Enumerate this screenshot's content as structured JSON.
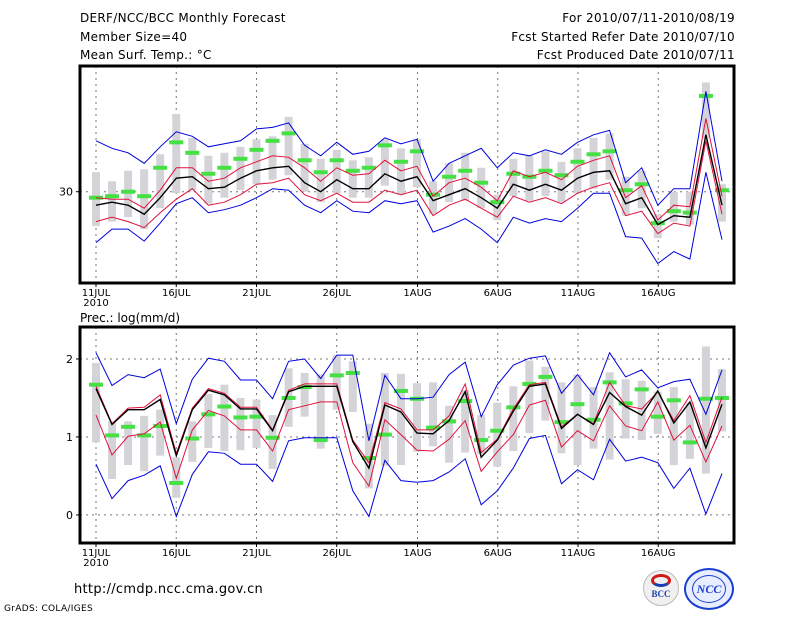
{
  "header": {
    "title": "DERF/NCC/BCC Monthly Forecast",
    "member_size": "Member Size=40",
    "variable": "Mean Surf. Temp.: °C",
    "period": "For 2010/07/11-2010/08/19",
    "started": "Fcst Started Refer Date 2010/07/10",
    "produced": "Fcst Produced Date 2010/07/11"
  },
  "footer": {
    "url": "http://cmdp.ncc.cma.gov.cn",
    "credit": "GrADS: COLA/IGES",
    "logo_bcc": "BCC",
    "logo_ncc": "NCC"
  },
  "colors": {
    "ensemble_mean": "#000000",
    "spread_inner": "#e0103c",
    "spread_outer": "#0000dd",
    "member_box": "#d4d4d8",
    "median": "#44e044"
  },
  "chart_data": [
    {
      "type": "line",
      "title": "Mean Surf. Temp.: °C",
      "xlabel": "",
      "ylabel": "",
      "x_tick_labels": [
        "11JUL",
        "16JUL",
        "21JUL",
        "26JUL",
        "1AUG",
        "6AUG",
        "11AUG",
        "16AUG"
      ],
      "x_tick_sublabel": "2010",
      "y_tick_labels": [
        "30"
      ],
      "y_ticks": [
        30
      ],
      "ylim": [
        23.9,
        38.4
      ],
      "grid": true,
      "dates": [
        "07/11",
        "07/12",
        "07/13",
        "07/14",
        "07/15",
        "07/16",
        "07/17",
        "07/18",
        "07/19",
        "07/20",
        "07/21",
        "07/22",
        "07/23",
        "07/24",
        "07/25",
        "07/26",
        "07/27",
        "07/28",
        "07/29",
        "07/30",
        "07/31",
        "08/01",
        "08/02",
        "08/03",
        "08/04",
        "08/05",
        "08/06",
        "08/07",
        "08/08",
        "08/09",
        "08/10",
        "08/11",
        "08/12",
        "08/13",
        "08/14",
        "08/15",
        "08/16",
        "08/17",
        "08/18",
        "08/19"
      ],
      "series": [
        {
          "name": "ensemble-mean",
          "values": [
            29.1,
            29.3,
            29.1,
            28.5,
            29.6,
            30.9,
            31.0,
            30.2,
            30.3,
            30.9,
            31.4,
            31.6,
            31.7,
            30.6,
            30.0,
            30.8,
            30.2,
            30.2,
            31.2,
            30.7,
            31.0,
            29.4,
            29.8,
            30.2,
            29.6,
            28.9,
            30.5,
            30.1,
            30.5,
            30.1,
            30.9,
            31.3,
            31.4,
            29.2,
            29.6,
            27.8,
            28.4,
            28.3,
            33.8,
            29.1
          ]
        },
        {
          "name": "spread-upper",
          "values": [
            33.4,
            32.9,
            32.6,
            31.9,
            33.0,
            34.0,
            33.7,
            33.0,
            33.2,
            33.4,
            34.2,
            34.3,
            34.6,
            33.1,
            32.4,
            33.3,
            32.5,
            32.7,
            33.6,
            33.2,
            33.5,
            30.7,
            31.9,
            32.4,
            32.9,
            31.6,
            32.6,
            32.4,
            32.8,
            32.5,
            33.3,
            33.8,
            34.1,
            30.6,
            31.6,
            29.1,
            30.2,
            30.2,
            36.7,
            30.7
          ]
        },
        {
          "name": "spread-inner-upper",
          "values": [
            29.6,
            29.5,
            29.5,
            28.9,
            30.1,
            31.6,
            31.6,
            30.7,
            30.9,
            31.6,
            32.0,
            32.4,
            32.3,
            31.6,
            30.7,
            31.6,
            31.1,
            31.2,
            32.1,
            31.4,
            31.7,
            29.7,
            30.6,
            30.9,
            30.3,
            29.4,
            31.4,
            31.0,
            31.3,
            30.8,
            31.7,
            32.1,
            32.4,
            29.6,
            30.4,
            28.1,
            29.1,
            29.0,
            34.9,
            29.7
          ]
        },
        {
          "name": "spread-inner-lower",
          "values": [
            28.0,
            28.3,
            28.0,
            27.6,
            28.6,
            29.5,
            30.2,
            29.1,
            29.3,
            29.8,
            30.5,
            30.6,
            30.9,
            29.8,
            29.4,
            29.9,
            29.3,
            29.3,
            30.1,
            29.8,
            30.1,
            28.4,
            29.1,
            29.5,
            28.9,
            28.3,
            29.7,
            29.3,
            29.6,
            29.2,
            29.9,
            30.3,
            30.6,
            28.4,
            28.7,
            27.2,
            27.9,
            27.7,
            33.4,
            28.5
          ]
        },
        {
          "name": "spread-lower",
          "values": [
            26.6,
            27.5,
            27.5,
            26.7,
            27.9,
            29.2,
            29.6,
            28.6,
            28.8,
            29.1,
            29.6,
            30.2,
            30.1,
            29.1,
            28.6,
            29.4,
            28.7,
            28.6,
            29.4,
            29.2,
            29.4,
            27.3,
            27.7,
            28.2,
            27.5,
            26.6,
            28.3,
            27.9,
            28.2,
            28.0,
            28.9,
            29.9,
            29.9,
            27.0,
            26.9,
            25.2,
            26.0,
            25.5,
            31.3,
            26.8
          ]
        },
        {
          "name": "median",
          "values": [
            29.6,
            29.7,
            30.0,
            29.7,
            31.6,
            33.3,
            32.6,
            31.2,
            31.6,
            32.2,
            32.8,
            33.4,
            33.9,
            32.1,
            31.3,
            32.1,
            31.4,
            31.6,
            33.1,
            32.0,
            32.7,
            29.8,
            31.0,
            31.4,
            30.6,
            29.3,
            31.2,
            31.0,
            31.4,
            31.1,
            32.0,
            32.5,
            32.7,
            30.1,
            30.5,
            27.9,
            28.7,
            28.6,
            36.4,
            30.1
          ]
        },
        {
          "name": "box-top",
          "values": [
            31.3,
            30.7,
            31.4,
            31.5,
            32.5,
            35.2,
            33.6,
            32.4,
            32.6,
            33.0,
            33.5,
            33.7,
            35.0,
            33.2,
            32.2,
            32.8,
            32.1,
            32.3,
            33.5,
            32.9,
            33.5,
            30.7,
            31.9,
            32.6,
            31.6,
            29.8,
            32.2,
            32.4,
            32.7,
            32.0,
            32.9,
            33.6,
            33.9,
            31.0,
            31.4,
            28.5,
            30.0,
            30.0,
            37.3,
            30.5
          ]
        },
        {
          "name": "box-bottom",
          "values": [
            27.7,
            28.0,
            28.3,
            27.5,
            28.9,
            29.9,
            30.1,
            29.2,
            29.6,
            30.1,
            30.5,
            30.8,
            31.1,
            30.0,
            29.3,
            29.9,
            29.6,
            29.6,
            30.4,
            29.8,
            30.3,
            28.5,
            29.3,
            29.4,
            28.9,
            28.1,
            29.7,
            29.4,
            29.7,
            29.3,
            29.9,
            30.2,
            30.8,
            28.4,
            28.9,
            26.9,
            28.0,
            27.8,
            33.6,
            28.0
          ]
        }
      ]
    },
    {
      "type": "line",
      "title": "Prec.: log(mm/d)",
      "xlabel": "",
      "ylabel": "",
      "x_tick_labels": [
        "11JUL",
        "16JUL",
        "21JUL",
        "26JUL",
        "1AUG",
        "6AUG",
        "11AUG",
        "16AUG"
      ],
      "x_tick_sublabel": "2010",
      "y_tick_labels": [
        "0",
        "1",
        "2"
      ],
      "y_ticks": [
        0,
        1,
        2
      ],
      "ylim": [
        -0.36,
        2.41
      ],
      "grid": true,
      "dates": [
        "07/11",
        "07/12",
        "07/13",
        "07/14",
        "07/15",
        "07/16",
        "07/17",
        "07/18",
        "07/19",
        "07/20",
        "07/21",
        "07/22",
        "07/23",
        "07/24",
        "07/25",
        "07/26",
        "07/27",
        "07/28",
        "07/29",
        "07/30",
        "07/31",
        "08/01",
        "08/02",
        "08/03",
        "08/04",
        "08/05",
        "08/06",
        "08/07",
        "08/08",
        "08/09",
        "08/10",
        "08/11",
        "08/12",
        "08/13",
        "08/14",
        "08/15",
        "08/16",
        "08/17",
        "08/18",
        "08/19"
      ],
      "series": [
        {
          "name": "ensemble-mean",
          "values": [
            1.62,
            1.16,
            1.35,
            1.35,
            1.48,
            0.76,
            1.35,
            1.6,
            1.54,
            1.36,
            1.36,
            1.08,
            1.58,
            1.65,
            1.65,
            1.65,
            0.94,
            0.6,
            1.41,
            1.32,
            1.05,
            1.04,
            1.21,
            1.58,
            0.74,
            0.96,
            1.33,
            1.65,
            1.68,
            1.11,
            1.29,
            1.16,
            1.57,
            1.39,
            1.28,
            1.59,
            1.18,
            1.45,
            0.86,
            1.42
          ]
        },
        {
          "name": "spread-upper",
          "values": [
            2.08,
            1.66,
            1.8,
            1.76,
            1.87,
            1.17,
            1.74,
            2.01,
            1.97,
            1.73,
            1.73,
            1.49,
            1.97,
            2.0,
            1.75,
            2.05,
            2.05,
            0.95,
            1.79,
            1.49,
            1.49,
            1.51,
            1.8,
            1.96,
            1.26,
            1.67,
            1.92,
            2.01,
            2.04,
            1.56,
            1.8,
            1.54,
            2.08,
            1.77,
            1.86,
            1.63,
            1.71,
            1.74,
            1.29,
            1.86
          ]
        },
        {
          "name": "spread-inner-upper",
          "values": [
            1.65,
            1.17,
            1.37,
            1.38,
            1.54,
            0.79,
            1.37,
            1.62,
            1.56,
            1.38,
            1.38,
            1.09,
            1.6,
            1.68,
            1.68,
            1.68,
            0.96,
            0.67,
            1.44,
            1.36,
            1.09,
            1.09,
            1.27,
            1.68,
            0.8,
            0.97,
            1.36,
            1.67,
            1.7,
            1.13,
            1.29,
            1.17,
            1.7,
            1.4,
            1.36,
            1.58,
            1.21,
            1.53,
            0.93,
            1.51
          ]
        },
        {
          "name": "spread-inner-lower",
          "values": [
            1.28,
            0.77,
            1.01,
            1.04,
            1.19,
            0.47,
            1.09,
            1.34,
            1.27,
            1.09,
            1.09,
            0.82,
            1.35,
            1.4,
            1.45,
            1.45,
            0.67,
            0.37,
            1.22,
            1.03,
            0.83,
            0.82,
            0.97,
            1.21,
            0.56,
            0.81,
            1.03,
            1.41,
            1.47,
            0.87,
            1.08,
            0.95,
            1.4,
            1.14,
            1.08,
            1.45,
            0.96,
            1.15,
            0.68,
            1.14
          ]
        },
        {
          "name": "spread-lower",
          "values": [
            0.65,
            0.21,
            0.44,
            0.51,
            0.63,
            -0.02,
            0.52,
            0.81,
            0.79,
            0.65,
            0.65,
            0.43,
            0.95,
            0.99,
            0.99,
            0.99,
            0.31,
            -0.02,
            0.7,
            0.44,
            0.42,
            0.44,
            0.55,
            0.72,
            0.13,
            0.31,
            0.6,
            0.98,
            1.02,
            0.4,
            0.58,
            0.45,
            0.97,
            0.69,
            0.74,
            0.67,
            0.34,
            0.6,
            0.01,
            0.53
          ]
        },
        {
          "name": "median",
          "values": [
            1.67,
            1.02,
            1.13,
            1.02,
            1.14,
            0.41,
            0.98,
            1.29,
            1.39,
            1.25,
            1.26,
            0.99,
            1.5,
            1.64,
            0.96,
            1.79,
            1.82,
            0.73,
            1.03,
            1.59,
            1.49,
            1.12,
            1.2,
            1.46,
            0.96,
            1.08,
            1.38,
            1.68,
            1.77,
            1.19,
            1.42,
            1.22,
            1.7,
            1.43,
            1.61,
            1.26,
            1.47,
            0.93,
            1.49,
            1.5
          ]
        },
        {
          "name": "box-top",
          "values": [
            1.95,
            1.2,
            1.2,
            1.27,
            1.35,
            0.74,
            1.2,
            1.55,
            1.67,
            1.5,
            1.48,
            1.28,
            1.88,
            1.82,
            1.8,
            2.05,
            1.97,
            1.17,
            1.82,
            1.81,
            1.69,
            1.7,
            1.4,
            1.6,
            1.28,
            1.44,
            1.65,
            1.98,
            1.9,
            1.7,
            1.8,
            1.64,
            1.83,
            1.74,
            1.72,
            1.58,
            1.64,
            1.44,
            2.16,
            1.87
          ]
        },
        {
          "name": "box-bottom",
          "values": [
            0.93,
            0.46,
            0.64,
            0.56,
            0.76,
            0.22,
            0.68,
            0.86,
            0.82,
            0.83,
            0.86,
            0.59,
            1.13,
            1.26,
            0.85,
            1.35,
            1.32,
            0.34,
            0.63,
            0.64,
            0.81,
            0.88,
            0.67,
            0.8,
            0.78,
            0.62,
            0.82,
            1.05,
            1.21,
            0.79,
            0.64,
            0.85,
            0.71,
            0.98,
            0.96,
            1.04,
            0.64,
            0.72,
            0.53,
            1.07
          ]
        }
      ]
    }
  ]
}
